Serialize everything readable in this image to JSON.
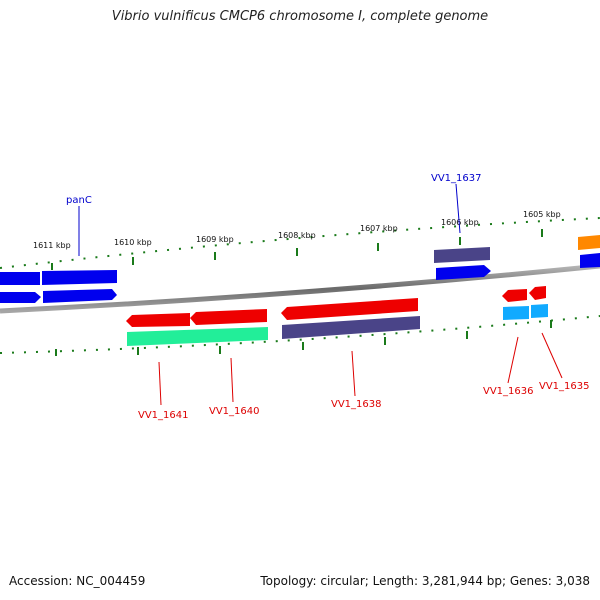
{
  "title": "Vibrio vulnificus CMCP6 chromosome I, complete genome",
  "footer": {
    "accession": "Accession: NC_004459",
    "summary": "Topology: circular; Length: 3,281,944 bp; Genes: 3,038"
  },
  "colors": {
    "backbone": "#7a7a7a",
    "ticks": "#1a7a1a",
    "forward_label": "#0000cc",
    "reverse_label": "#dd0000",
    "cds_blue": "#0000ee",
    "cds_slate": "#4a4488",
    "cds_red": "#ee0000",
    "cds_teal": "#22ee99",
    "cds_cyan": "#11aaff",
    "cds_orange": "#ff8800"
  },
  "kbp_labels": [
    "1611 kbp",
    "1610 kbp",
    "1609 kbp",
    "1608 kbp",
    "1607 kbp",
    "1606 kbp",
    "1605 kbp"
  ],
  "forward_genes": [
    "panC",
    "VV1_1637"
  ],
  "reverse_genes": [
    "VV1_1641",
    "VV1_1640",
    "VV1_1638",
    "VV1_1636",
    "VV1_1635"
  ]
}
